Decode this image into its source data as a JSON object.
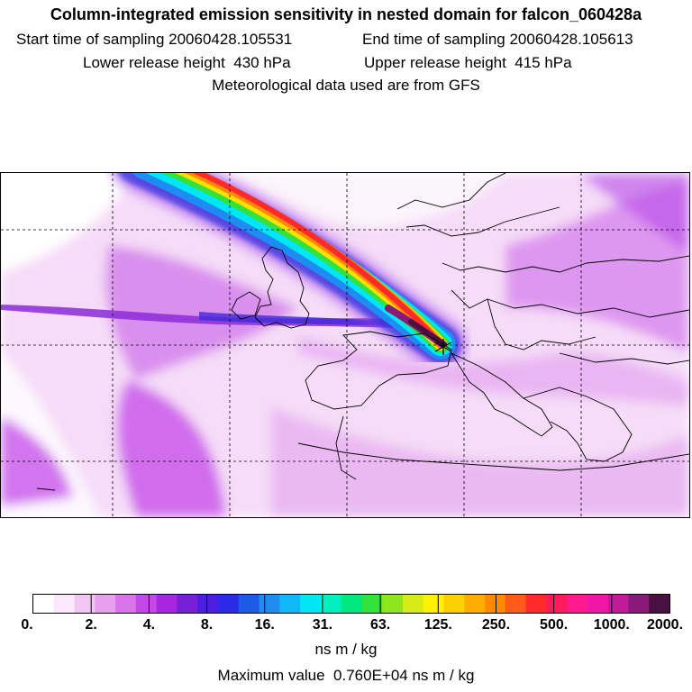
{
  "header": {
    "title": "Column-integrated emission sensitivity in nested domain for falcon_060428a",
    "start_label": "Start time of sampling 20060428.105531",
    "end_label": "End time of sampling 20060428.105613",
    "lower_label": "Lower release height  430 hPa",
    "upper_label": "Upper release height  415 hPa",
    "met_label": "Meteorological data used are from GFS"
  },
  "colorbar": {
    "ticks": [
      "0.",
      "2.",
      "4.",
      "8.",
      "16.",
      "31.",
      "63.",
      "125.",
      "250.",
      "500.",
      "1000.",
      "2000."
    ],
    "unit": "ns m / kg",
    "colors": [
      "#ffffff",
      "#fbe9fb",
      "#f2c6f2",
      "#e8a0ec",
      "#d873ea",
      "#c547e8",
      "#a826e0",
      "#7a1fd8",
      "#4e1ee0",
      "#2b2ae8",
      "#1e5ae8",
      "#1f8cf0",
      "#10b8f8",
      "#00e6f5",
      "#00f0c0",
      "#00e880",
      "#33e23a",
      "#8ee61d",
      "#d7ec16",
      "#fff200",
      "#ffd000",
      "#ffae00",
      "#ff8a00",
      "#ff5a1a",
      "#ff2a2a",
      "#ff1a5e",
      "#ff1a90",
      "#f017a8",
      "#c01c9a",
      "#8a1a7a",
      "#4a1040"
    ]
  },
  "footer": {
    "max_label": "Maximum value  0.760E+04 ns m / kg"
  }
}
